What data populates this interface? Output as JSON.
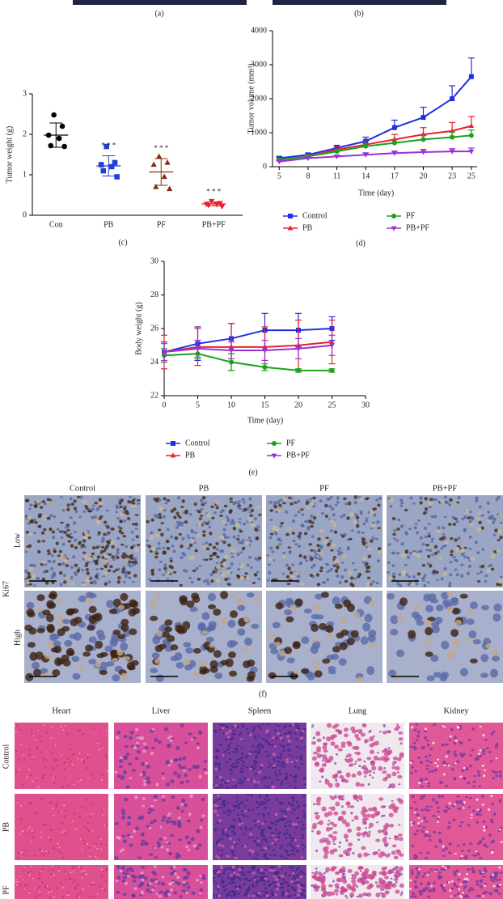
{
  "panel_labels": {
    "a": "(a)",
    "b": "(b)",
    "f": "(f)"
  },
  "chart_data": [
    {
      "type": "dot",
      "panel_label": "(c)",
      "y_label": "Tumor weight (g)",
      "categories": [
        "Con",
        "PB",
        "PF",
        "PB+PF"
      ],
      "colors": [
        "#000000",
        "#1f3fd6",
        "#8b2a12",
        "#e8202a"
      ],
      "markers": [
        "circle",
        "square",
        "triangle",
        "triangle-down"
      ],
      "points": [
        [
          2.48,
          2.2,
          1.98,
          1.9,
          1.72,
          1.7
        ],
        [
          1.7,
          1.3,
          1.25,
          1.2,
          1.1,
          0.95
        ],
        [
          1.45,
          1.3,
          1.25,
          0.95,
          0.7,
          0.65
        ],
        [
          0.35,
          0.3,
          0.28,
          0.27,
          0.25,
          0.22
        ]
      ],
      "means": [
        1.98,
        1.22,
        1.07,
        0.28
      ],
      "sds": [
        0.3,
        0.25,
        0.33,
        0.05
      ],
      "annotations": [
        null,
        "* * *",
        "* * *",
        "* * *"
      ],
      "ylim": [
        0,
        3
      ],
      "yticks": [
        0,
        1,
        2,
        3
      ]
    },
    {
      "type": "line",
      "panel_label": "(d)",
      "x_label": "Time (day)",
      "y_label": "Tumor volume (mm³)",
      "x": [
        5,
        8,
        11,
        14,
        17,
        20,
        23,
        25
      ],
      "xlim": [
        4.3,
        25.6
      ],
      "xticks": [
        5,
        8,
        11,
        14,
        17,
        20,
        23,
        25
      ],
      "ylim": [
        0,
        4000
      ],
      "yticks": [
        0,
        1000,
        2000,
        3000,
        4000
      ],
      "error_direction": "up",
      "series": [
        {
          "name": "Control",
          "color": "#1f2fe0",
          "marker": "square",
          "values": [
            250,
            350,
            550,
            750,
            1150,
            1450,
            2000,
            2650
          ],
          "errors": [
            50,
            50,
            80,
            120,
            220,
            300,
            380,
            550
          ]
        },
        {
          "name": "PB",
          "color": "#e8202a",
          "marker": "triangle",
          "values": [
            200,
            300,
            500,
            650,
            800,
            950,
            1050,
            1200
          ],
          "errors": [
            40,
            50,
            80,
            100,
            150,
            200,
            250,
            280
          ]
        },
        {
          "name": "PF",
          "color": "#1aa31a",
          "marker": "circle",
          "values": [
            200,
            300,
            450,
            600,
            700,
            800,
            870,
            920
          ],
          "errors": [
            30,
            40,
            60,
            80,
            100,
            120,
            150,
            160
          ]
        },
        {
          "name": "PB+PF",
          "color": "#9b30d9",
          "marker": "triangle-down",
          "values": [
            150,
            250,
            300,
            350,
            400,
            430,
            450,
            450
          ],
          "errors": [
            30,
            30,
            40,
            60,
            60,
            80,
            80,
            100
          ]
        }
      ]
    },
    {
      "type": "line",
      "panel_label": "(e)",
      "x_label": "Time (day)",
      "y_label": "Body weight (g)",
      "x": [
        0,
        5,
        10,
        15,
        20,
        25
      ],
      "xlim": [
        0,
        30
      ],
      "xticks": [
        0,
        5,
        10,
        15,
        20,
        25,
        30
      ],
      "ylim": [
        22,
        30
      ],
      "yticks": [
        22,
        24,
        26,
        28,
        30
      ],
      "error_direction": "both",
      "series": [
        {
          "name": "Control",
          "color": "#1f2fe0",
          "marker": "square",
          "values": [
            24.6,
            25.1,
            25.4,
            25.9,
            25.9,
            26.0
          ],
          "errors": [
            0.6,
            1.0,
            0.9,
            1.0,
            1.0,
            0.7
          ]
        },
        {
          "name": "PB",
          "color": "#e8202a",
          "marker": "triangle",
          "values": [
            24.6,
            24.9,
            24.9,
            24.9,
            25.0,
            25.2
          ],
          "errors": [
            1.0,
            1.1,
            1.4,
            1.2,
            1.5,
            1.3
          ]
        },
        {
          "name": "PF",
          "color": "#1aa31a",
          "marker": "circle",
          "values": [
            24.4,
            24.5,
            24.0,
            23.7,
            23.5,
            23.5
          ],
          "errors": [
            0.4,
            0.3,
            0.5,
            0.2,
            0.1,
            0.1
          ]
        },
        {
          "name": "PB+PF",
          "color": "#9b30d9",
          "marker": "triangle-down",
          "values": [
            24.6,
            24.8,
            24.7,
            24.7,
            24.8,
            25.0
          ],
          "errors": [
            0.5,
            0.5,
            0.5,
            0.6,
            0.6,
            0.6
          ]
        }
      ]
    }
  ],
  "ki67": {
    "stain": "Ki67",
    "columns": [
      "Control",
      "PB",
      "PF",
      "PB+PF"
    ],
    "rows": [
      "Low",
      "High"
    ]
  },
  "he": {
    "columns": [
      "Heart",
      "Liver",
      "Spleen",
      "Lung",
      "Kidney"
    ],
    "rows": [
      "Control",
      "PB",
      "PF"
    ]
  }
}
